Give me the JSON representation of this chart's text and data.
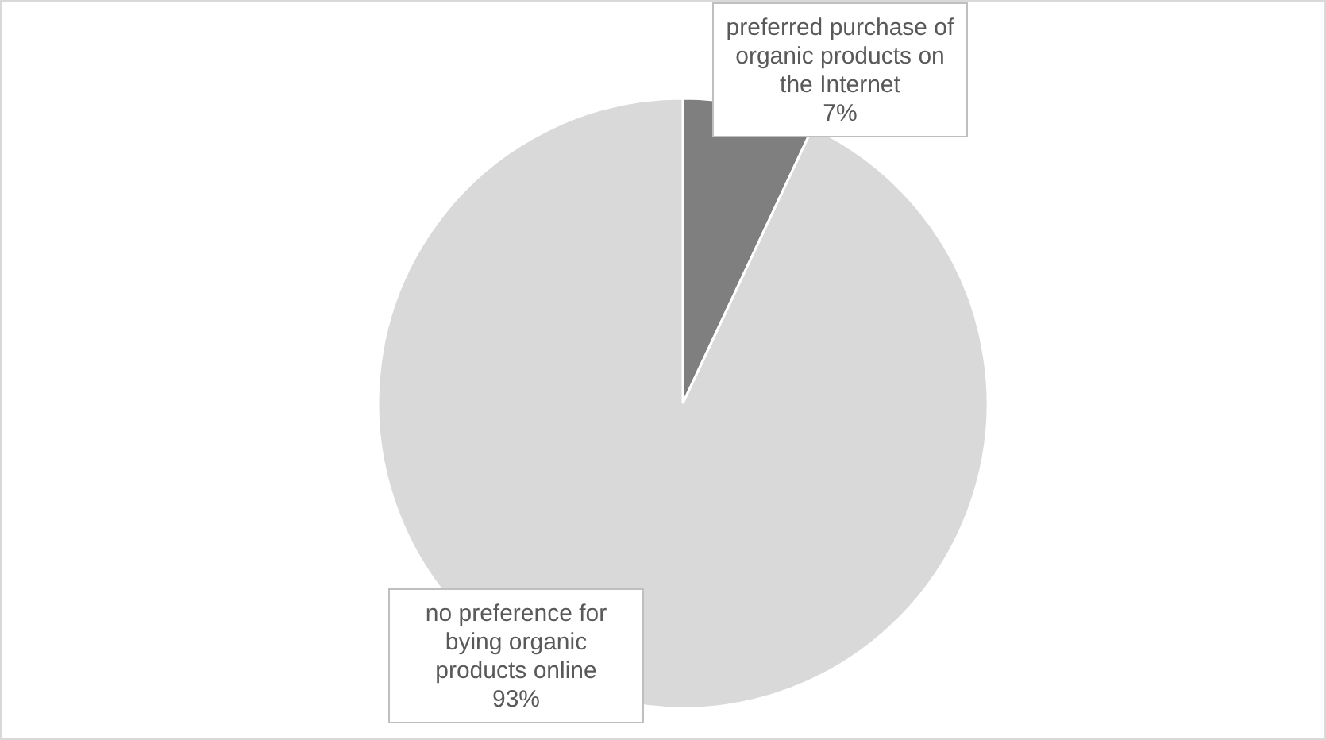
{
  "chart_data": {
    "type": "pie",
    "categories": [
      "preferred purchase of organic products on the Internet",
      "no preference for bying organic products online"
    ],
    "values": [
      7,
      93
    ],
    "colors": [
      "#7f7f7f",
      "#d9d9d9"
    ],
    "value_labels": [
      "7%",
      "93%"
    ]
  }
}
